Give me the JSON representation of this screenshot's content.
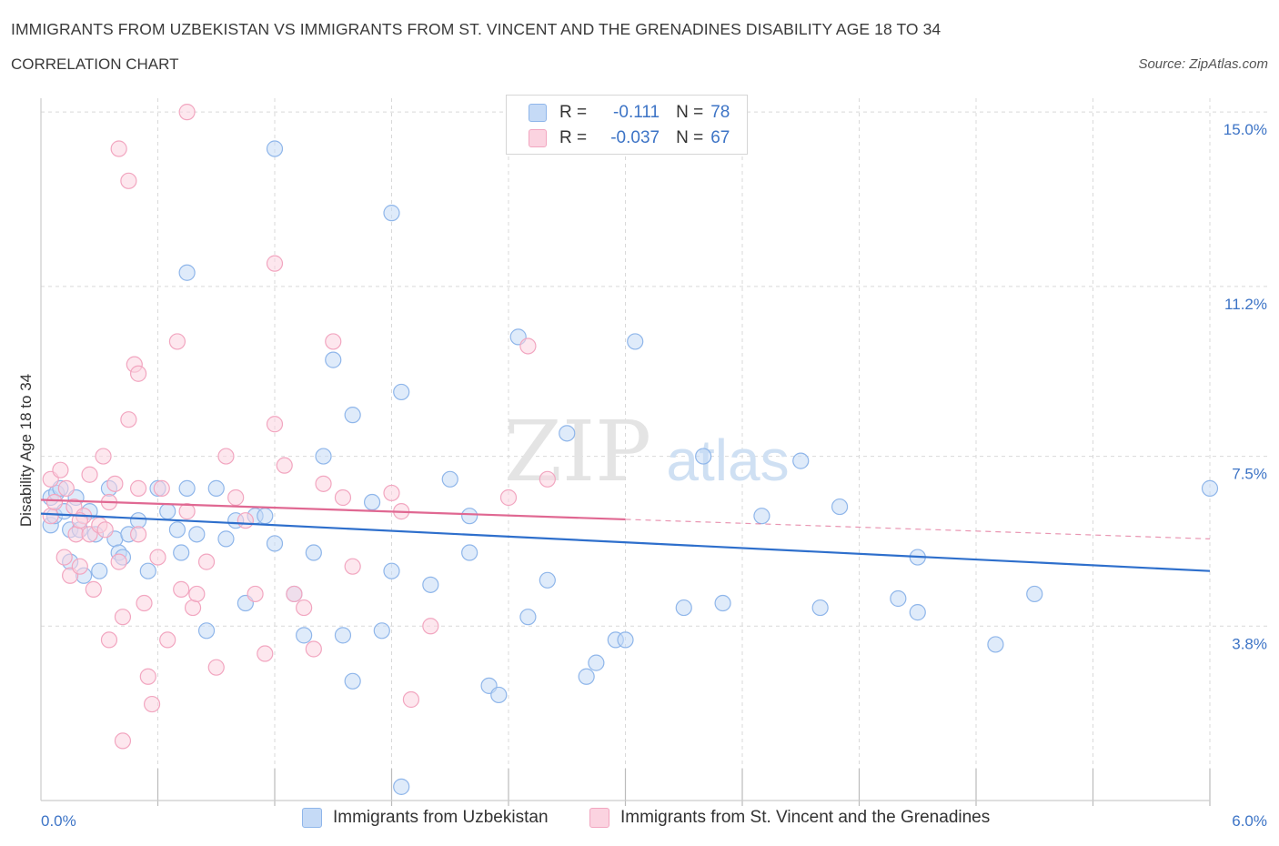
{
  "title": "IMMIGRANTS FROM UZBEKISTAN VS IMMIGRANTS FROM ST. VINCENT AND THE GRENADINES DISABILITY AGE 18 TO 34",
  "subtitle": "CORRELATION CHART",
  "source": "Source: ZipAtlas.com",
  "watermark": {
    "zip": "ZIP",
    "atlas": "atlas"
  },
  "legend": {
    "rows": [
      {
        "r_label": "R =",
        "r_value": "-0.111",
        "n_label": "N =",
        "n_value": "78"
      },
      {
        "r_label": "R =",
        "r_value": "-0.037",
        "n_label": "N =",
        "n_value": "67"
      }
    ]
  },
  "chart_data": {
    "type": "scatter",
    "title": "IMMIGRANTS FROM UZBEKISTAN VS IMMIGRANTS FROM ST. VINCENT AND THE GRENADINES DISABILITY AGE 18 TO 34",
    "xlabel": "",
    "ylabel": "Disability Age 18 to 34",
    "xlim": [
      0,
      6.0
    ],
    "ylim": [
      0,
      15.3
    ],
    "x_tick_labels": [
      "0.0%",
      "6.0%"
    ],
    "y_ticks": [
      3.8,
      7.5,
      11.2,
      15.0
    ],
    "y_tick_labels": [
      "3.8%",
      "7.5%",
      "11.2%",
      "15.0%"
    ],
    "grid": true,
    "legend_position": "top-center",
    "series": [
      {
        "name": "Immigrants from Uzbekistan",
        "color": "#8fb6ea",
        "line_color": "#2e6fcc",
        "trend": {
          "x": [
            0.0,
            6.0
          ],
          "y": [
            6.25,
            5.0
          ],
          "x_solid_end": 6.0
        },
        "points": [
          [
            0.05,
            6.6
          ],
          [
            0.05,
            6.0
          ],
          [
            0.07,
            6.2
          ],
          [
            0.08,
            6.7
          ],
          [
            0.1,
            6.8
          ],
          [
            0.12,
            6.3
          ],
          [
            0.15,
            5.9
          ],
          [
            0.15,
            5.2
          ],
          [
            0.18,
            6.6
          ],
          [
            0.2,
            5.9
          ],
          [
            0.22,
            4.9
          ],
          [
            0.25,
            6.3
          ],
          [
            0.28,
            5.8
          ],
          [
            0.3,
            5.0
          ],
          [
            0.35,
            6.8
          ],
          [
            0.38,
            5.7
          ],
          [
            0.4,
            5.4
          ],
          [
            0.42,
            5.3
          ],
          [
            0.45,
            5.8
          ],
          [
            0.5,
            6.1
          ],
          [
            0.55,
            5.0
          ],
          [
            0.6,
            6.8
          ],
          [
            0.65,
            6.3
          ],
          [
            0.7,
            5.9
          ],
          [
            0.72,
            5.4
          ],
          [
            0.75,
            6.8
          ],
          [
            0.8,
            5.8
          ],
          [
            0.85,
            3.7
          ],
          [
            0.9,
            6.8
          ],
          [
            0.95,
            5.7
          ],
          [
            1.0,
            6.1
          ],
          [
            1.05,
            4.3
          ],
          [
            1.1,
            6.2
          ],
          [
            1.15,
            6.2
          ],
          [
            1.2,
            5.6
          ],
          [
            1.3,
            4.5
          ],
          [
            1.35,
            3.6
          ],
          [
            1.4,
            5.4
          ],
          [
            1.45,
            7.5
          ],
          [
            1.5,
            9.6
          ],
          [
            1.55,
            3.6
          ],
          [
            1.6,
            8.4
          ],
          [
            1.6,
            2.6
          ],
          [
            1.7,
            6.5
          ],
          [
            1.75,
            3.7
          ],
          [
            1.8,
            5.0
          ],
          [
            1.85,
            8.9
          ],
          [
            2.0,
            4.7
          ],
          [
            2.1,
            7.0
          ],
          [
            2.2,
            6.2
          ],
          [
            2.2,
            5.4
          ],
          [
            2.3,
            2.5
          ],
          [
            2.35,
            2.3
          ],
          [
            2.45,
            10.1
          ],
          [
            2.5,
            4.0
          ],
          [
            2.6,
            4.8
          ],
          [
            2.7,
            8.0
          ],
          [
            2.8,
            2.7
          ],
          [
            2.85,
            3.0
          ],
          [
            2.95,
            3.5
          ],
          [
            3.0,
            3.5
          ],
          [
            3.05,
            10.0
          ],
          [
            3.3,
            4.2
          ],
          [
            3.4,
            7.5
          ],
          [
            3.5,
            4.3
          ],
          [
            3.7,
            6.2
          ],
          [
            3.9,
            7.4
          ],
          [
            4.0,
            4.2
          ],
          [
            4.1,
            6.4
          ],
          [
            4.4,
            4.4
          ],
          [
            4.5,
            5.3
          ],
          [
            4.5,
            4.1
          ],
          [
            4.9,
            3.4
          ],
          [
            5.1,
            4.5
          ],
          [
            6.0,
            6.8
          ],
          [
            1.2,
            14.2
          ],
          [
            1.8,
            12.8
          ],
          [
            0.75,
            11.5
          ],
          [
            1.85,
            0.3
          ]
        ]
      },
      {
        "name": "Immigrants from St. Vincent and the Grenadines",
        "color": "#f2a6c0",
        "line_color": "#e06892",
        "trend": {
          "x": [
            0.0,
            6.0
          ],
          "y": [
            6.55,
            5.7
          ],
          "x_solid_end": 3.0
        },
        "points": [
          [
            0.05,
            6.2
          ],
          [
            0.05,
            7.0
          ],
          [
            0.07,
            6.5
          ],
          [
            0.1,
            7.2
          ],
          [
            0.12,
            5.3
          ],
          [
            0.13,
            6.8
          ],
          [
            0.15,
            4.9
          ],
          [
            0.17,
            6.4
          ],
          [
            0.18,
            5.8
          ],
          [
            0.2,
            5.1
          ],
          [
            0.22,
            6.2
          ],
          [
            0.25,
            5.8
          ],
          [
            0.25,
            7.1
          ],
          [
            0.27,
            4.6
          ],
          [
            0.3,
            6.0
          ],
          [
            0.32,
            7.5
          ],
          [
            0.33,
            5.9
          ],
          [
            0.35,
            6.5
          ],
          [
            0.38,
            6.9
          ],
          [
            0.4,
            5.2
          ],
          [
            0.42,
            4.0
          ],
          [
            0.45,
            8.3
          ],
          [
            0.48,
            9.5
          ],
          [
            0.5,
            6.8
          ],
          [
            0.5,
            5.8
          ],
          [
            0.53,
            4.3
          ],
          [
            0.55,
            2.7
          ],
          [
            0.57,
            2.1
          ],
          [
            0.6,
            5.3
          ],
          [
            0.62,
            6.8
          ],
          [
            0.65,
            3.5
          ],
          [
            0.7,
            10.0
          ],
          [
            0.72,
            4.6
          ],
          [
            0.75,
            6.3
          ],
          [
            0.78,
            4.2
          ],
          [
            0.8,
            4.5
          ],
          [
            0.85,
            5.2
          ],
          [
            0.9,
            2.9
          ],
          [
            0.95,
            7.5
          ],
          [
            1.0,
            6.6
          ],
          [
            1.05,
            6.1
          ],
          [
            1.1,
            4.5
          ],
          [
            1.15,
            3.2
          ],
          [
            1.2,
            8.2
          ],
          [
            1.25,
            7.3
          ],
          [
            1.3,
            4.5
          ],
          [
            1.35,
            4.2
          ],
          [
            1.4,
            3.3
          ],
          [
            1.45,
            6.9
          ],
          [
            1.5,
            10.0
          ],
          [
            1.55,
            6.6
          ],
          [
            1.6,
            5.1
          ],
          [
            1.8,
            6.7
          ],
          [
            1.85,
            6.3
          ],
          [
            1.9,
            2.2
          ],
          [
            2.0,
            3.8
          ],
          [
            2.4,
            6.6
          ],
          [
            2.5,
            9.9
          ],
          [
            2.6,
            7.0
          ],
          [
            0.4,
            14.2
          ],
          [
            0.45,
            13.5
          ],
          [
            0.75,
            15.0
          ],
          [
            1.2,
            11.7
          ],
          [
            0.5,
            9.3
          ],
          [
            0.42,
            1.3
          ],
          [
            0.35,
            3.5
          ],
          [
            0.2,
            6.1
          ]
        ]
      }
    ]
  },
  "bottom_legend": {
    "items": [
      {
        "label": "Immigrants from Uzbekistan"
      },
      {
        "label": "Immigrants from St. Vincent and the Grenadines"
      }
    ]
  },
  "colors": {
    "blue_fill": "#c5daf6",
    "blue_stroke": "#8fb6ea",
    "pink_fill": "#fbd3e0",
    "pink_stroke": "#f2a6c0",
    "tick_text": "#3d74c6",
    "grid": "#d9d9d9"
  }
}
